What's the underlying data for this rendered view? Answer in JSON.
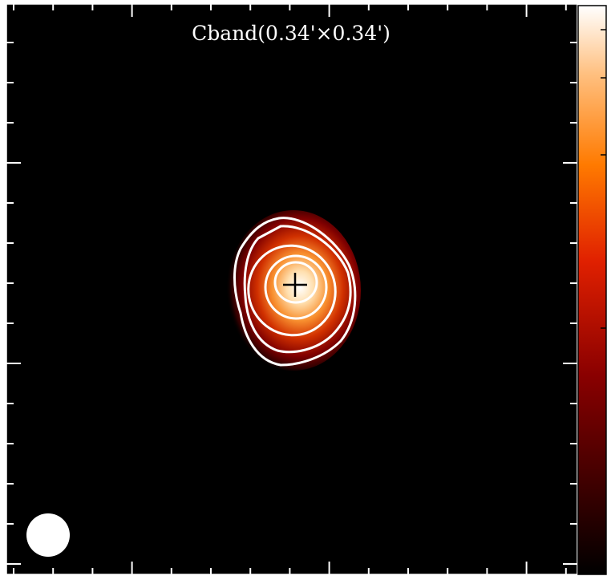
{
  "title": "Cband(0.34'×0.34')"
}
